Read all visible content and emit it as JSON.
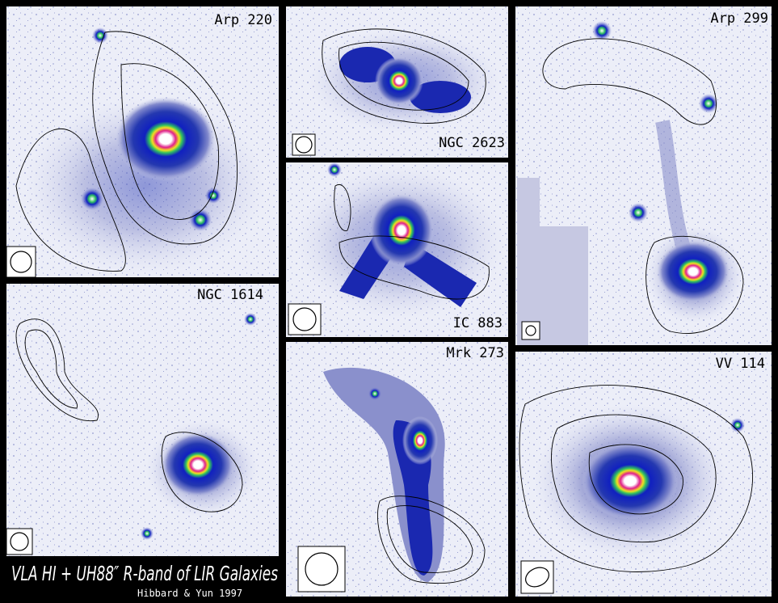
{
  "panels": [
    {
      "label": "Arp 220"
    },
    {
      "label": "NGC 2623"
    },
    {
      "label": "IC 883"
    },
    {
      "label": "Mrk 273"
    },
    {
      "label": "Arp 299"
    },
    {
      "label": "NGC 1614"
    },
    {
      "label": "VV 114"
    }
  ],
  "footer": {
    "title": "VLA HI + UH88″ R-band of LIR Galaxies",
    "credit": "Hibbard & Yun 1997"
  }
}
